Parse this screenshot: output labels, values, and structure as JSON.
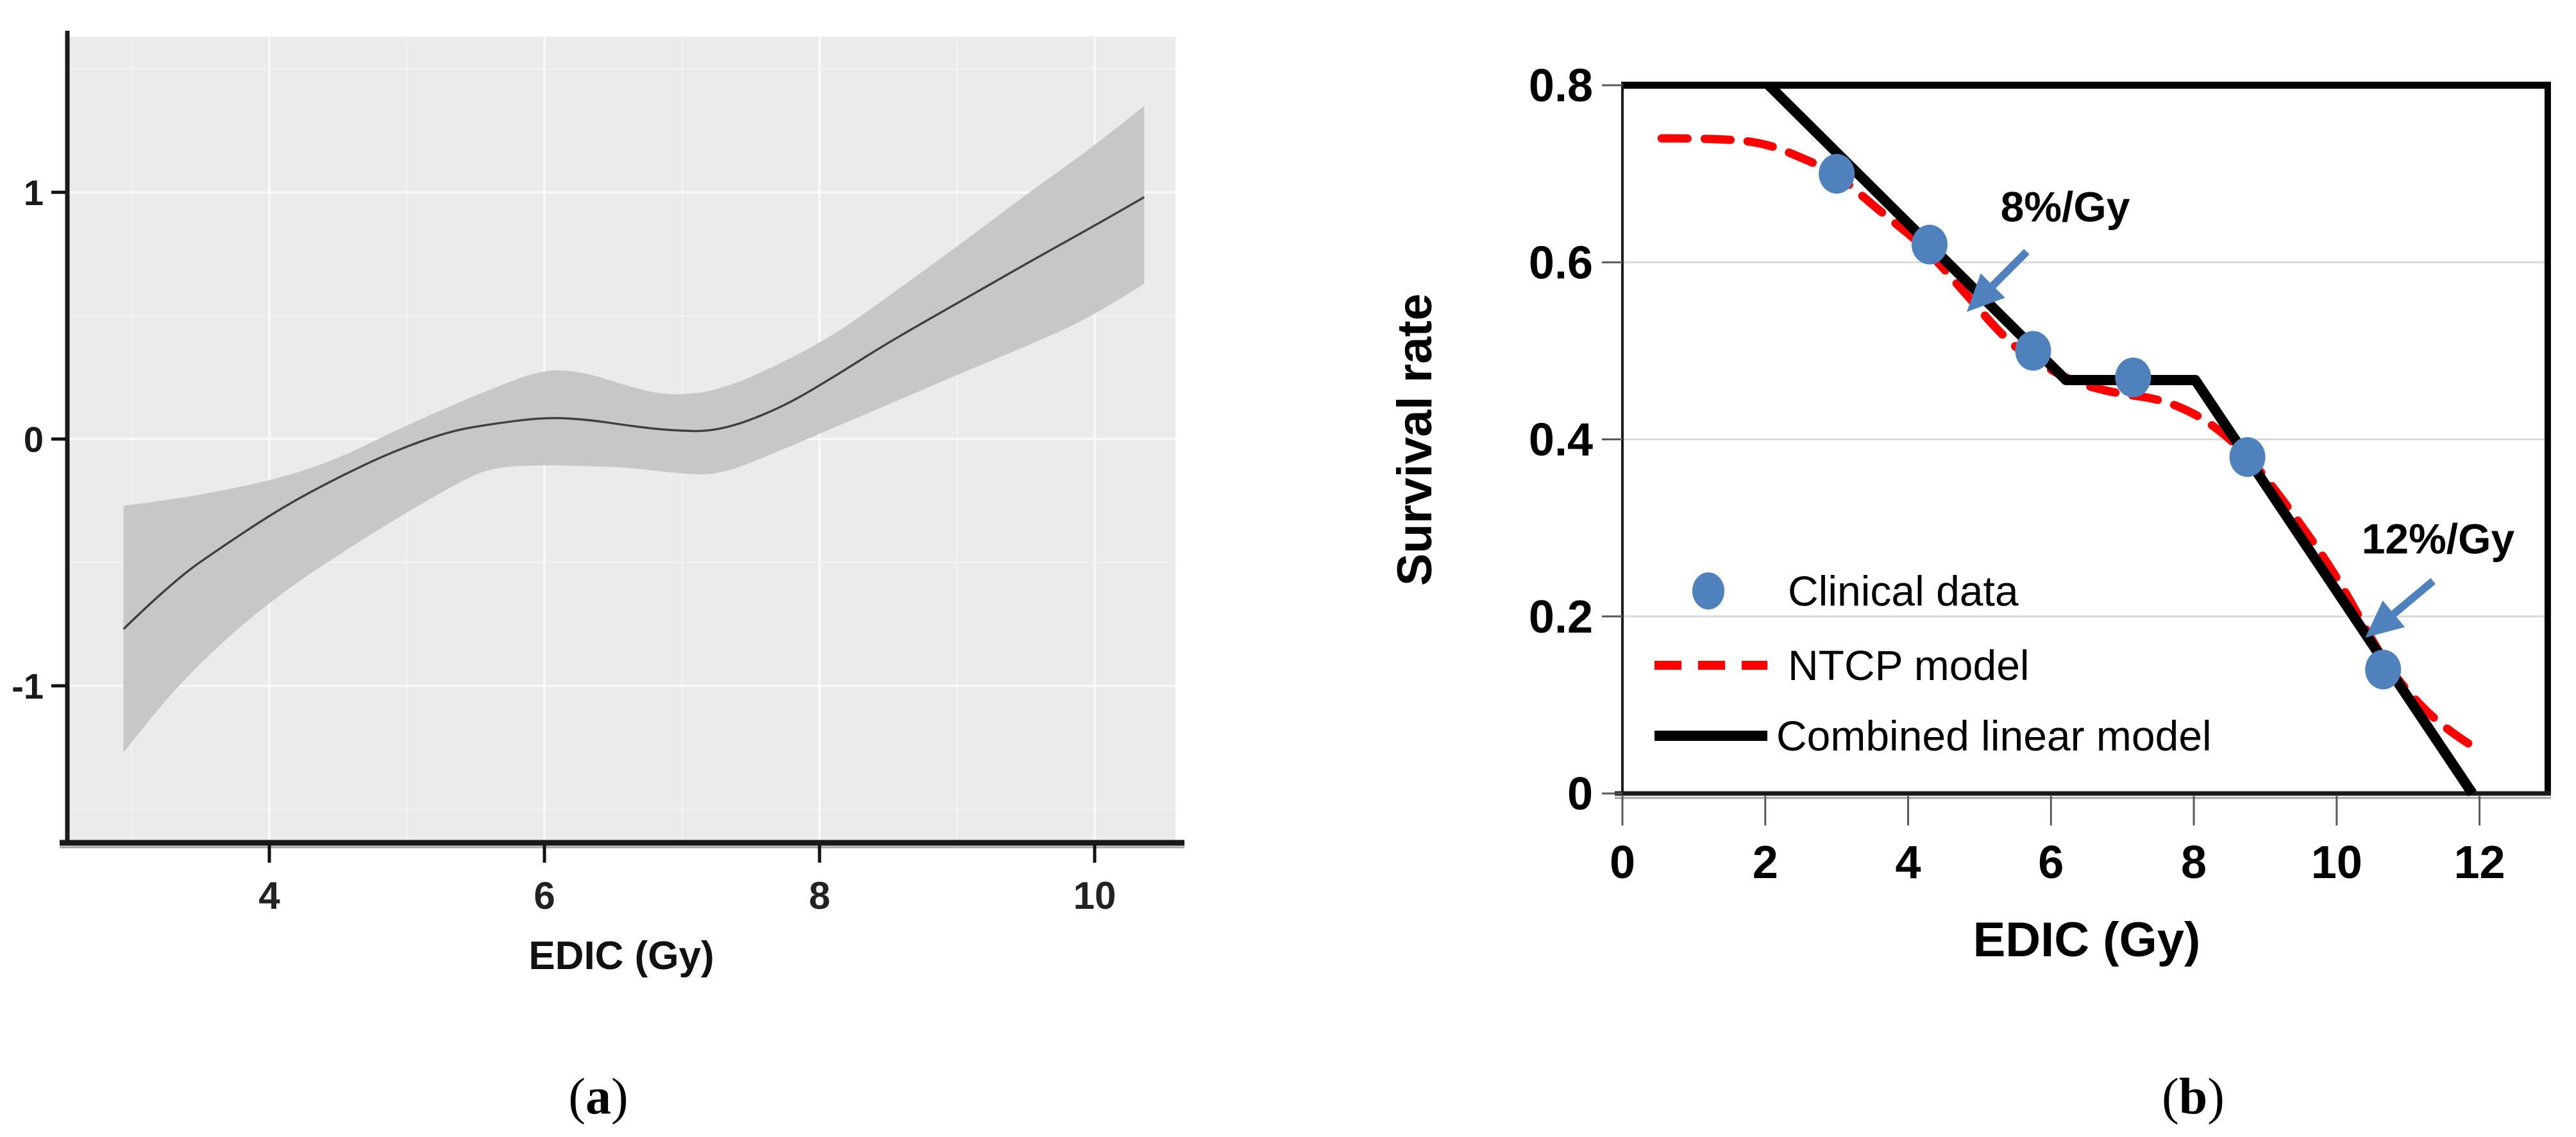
{
  "captions": {
    "open": "(",
    "close": ")",
    "a": "a",
    "b": "b"
  },
  "colors": {
    "accent_blue": "#4f81bd",
    "ntcp_red": "#ff0000",
    "model_black": "#000000",
    "panel_gray": "#ebebeb",
    "band_gray": "#c7c7c7",
    "smooth_line_gray": "#3f3f3f",
    "grid_light": "#d9d9d9",
    "axis_dark": "#1a1a1a",
    "tick_gray": "#595959",
    "shadow_gray": "#a6a6a6"
  },
  "chart_data": [
    {
      "id": "gam-smooth-plot",
      "type": "line",
      "title": "",
      "xlabel": "EDIC (Gy)",
      "ylabel": "",
      "xlim": [
        2.53,
        10.59
      ],
      "ylim": [
        -1.63,
        1.64
      ],
      "xticks": [
        4,
        6,
        8,
        10
      ],
      "yticks": [
        -1,
        0,
        1
      ],
      "xticks_minor": [
        3,
        5,
        7,
        9
      ],
      "yticks_minor": [
        -1.5,
        -0.5,
        0.5,
        1.5
      ],
      "grid": "ggplot-white-on-gray",
      "series": [
        {
          "name": "smooth-fit",
          "x": [
            2.94,
            3.3,
            3.7,
            4.1,
            4.5,
            4.9,
            5.3,
            5.6,
            6.0,
            6.3,
            6.6,
            6.9,
            7.26,
            7.7,
            8.1,
            8.48,
            9.0,
            9.5,
            10.0,
            10.36
          ],
          "y": [
            -0.77,
            -0.575,
            -0.42,
            -0.275,
            -0.155,
            -0.05,
            0.03,
            0.06,
            0.088,
            0.08,
            0.055,
            0.035,
            0.03,
            0.12,
            0.25,
            0.385,
            0.55,
            0.71,
            0.865,
            0.98
          ]
        }
      ],
      "confidence_band": {
        "x": [
          2.94,
          3.3,
          3.7,
          4.1,
          4.5,
          4.9,
          5.3,
          5.6,
          6.0,
          6.3,
          6.6,
          6.9,
          7.26,
          7.7,
          8.1,
          8.48,
          9.0,
          9.5,
          10.0,
          10.36
        ],
        "upper": [
          -0.27,
          -0.245,
          -0.205,
          -0.155,
          -0.08,
          0.03,
          0.13,
          0.2,
          0.285,
          0.27,
          0.215,
          0.175,
          0.195,
          0.3,
          0.42,
          0.57,
          0.78,
          0.99,
          1.19,
          1.35
        ],
        "lower": [
          -1.27,
          -1.02,
          -0.8,
          -0.62,
          -0.47,
          -0.33,
          -0.2,
          -0.115,
          -0.105,
          -0.11,
          -0.115,
          -0.135,
          -0.15,
          -0.05,
          0.045,
          0.135,
          0.26,
          0.375,
          0.5,
          0.63
        ]
      }
    },
    {
      "id": "survival-rate-plot",
      "type": "line+scatter",
      "title": "",
      "xlabel": "EDIC (Gy)",
      "ylabel": "Survival rate",
      "xlim": [
        0,
        13
      ],
      "ylim": [
        0,
        0.8
      ],
      "xticks": [
        0,
        2,
        4,
        6,
        8,
        10,
        12
      ],
      "yticks": [
        0,
        0.2,
        0.4,
        0.6,
        0.8
      ],
      "gridlines_y": [
        0.2,
        0.4,
        0.6
      ],
      "legend_position": "inside-lower-left",
      "series": [
        {
          "name": "Clinical data",
          "type": "scatter",
          "color": "#4f81bd",
          "points": [
            [
              3.0,
              0.7
            ],
            [
              4.3,
              0.62
            ],
            [
              5.75,
              0.5
            ],
            [
              7.15,
              0.47
            ],
            [
              8.75,
              0.38
            ],
            [
              10.65,
              0.14
            ]
          ]
        },
        {
          "name": "NTCP model",
          "type": "dashed-line",
          "color": "#ff0000",
          "points": [
            [
              0.55,
              0.74
            ],
            [
              1.3,
              0.74
            ],
            [
              2.0,
              0.735
            ],
            [
              2.6,
              0.715
            ],
            [
              3.0,
              0.7
            ],
            [
              3.6,
              0.658
            ],
            [
              4.2,
              0.62
            ],
            [
              4.8,
              0.565
            ],
            [
              5.4,
              0.51
            ],
            [
              5.8,
              0.488
            ],
            [
              6.3,
              0.465
            ],
            [
              6.9,
              0.452
            ],
            [
              7.5,
              0.446
            ],
            [
              8.0,
              0.43
            ],
            [
              8.4,
              0.408
            ],
            [
              8.8,
              0.378
            ],
            [
              9.4,
              0.315
            ],
            [
              10.0,
              0.246
            ],
            [
              10.65,
              0.15
            ],
            [
              11.1,
              0.105
            ],
            [
              11.5,
              0.075
            ],
            [
              12.0,
              0.048
            ]
          ]
        },
        {
          "name": "Combined linear model",
          "type": "line",
          "color": "#000000",
          "points": [
            [
              2.05,
              0.8
            ],
            [
              6.21,
              0.467
            ],
            [
              8.02,
              0.467
            ],
            [
              11.9,
              0.0
            ]
          ]
        }
      ],
      "annotations": [
        {
          "text": "8%/Gy",
          "x": 6.2,
          "y": 0.662,
          "arrow_from": [
            5.66,
            0.612
          ],
          "arrow_to": [
            4.82,
            0.544
          ]
        },
        {
          "text": "12%/Gy",
          "x": 11.42,
          "y": 0.287,
          "arrow_from": [
            11.35,
            0.24
          ],
          "arrow_to": [
            10.4,
            0.176
          ]
        }
      ]
    }
  ]
}
